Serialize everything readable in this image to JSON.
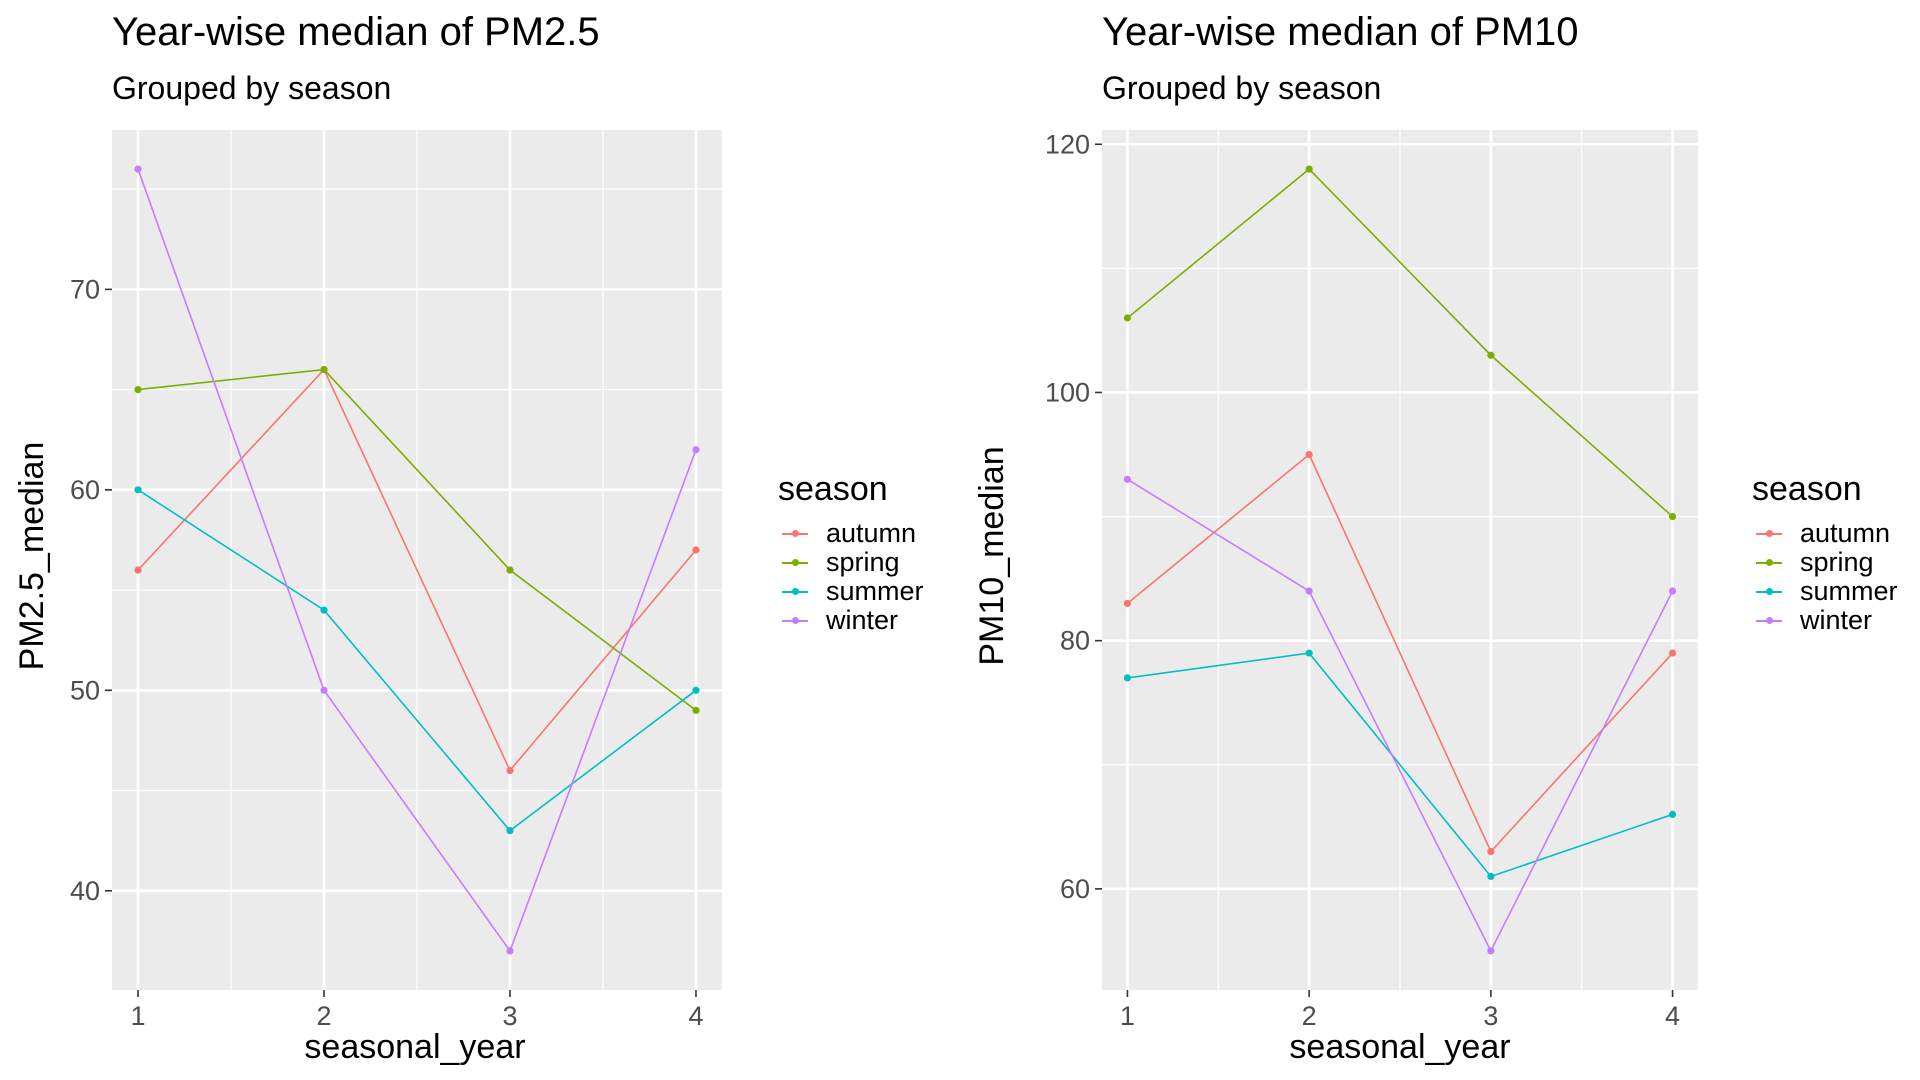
{
  "chart_data": [
    {
      "type": "line",
      "title": "Year-wise median of PM2.5",
      "subtitle": "Grouped by season",
      "xlabel": "seasonal_year",
      "ylabel": "PM2.5_median",
      "x": [
        1,
        2,
        3,
        4
      ],
      "xticks": [
        "1",
        "2",
        "3",
        "4"
      ],
      "yticks": [
        40,
        50,
        60,
        70
      ],
      "xlim": [
        0.86,
        4.14
      ],
      "ylim": [
        35.05,
        77.95
      ],
      "grid": true,
      "legend_title": "season",
      "legend_position": "right",
      "series": [
        {
          "name": "autumn",
          "color": "#F8766D",
          "values": [
            56,
            66,
            46,
            57
          ]
        },
        {
          "name": "spring",
          "color": "#7CAE00",
          "values": [
            65,
            66,
            56,
            49
          ]
        },
        {
          "name": "summer",
          "color": "#00BFC4",
          "values": [
            60,
            54,
            43,
            50
          ]
        },
        {
          "name": "winter",
          "color": "#C77CFF",
          "values": [
            76,
            50,
            37,
            62
          ]
        }
      ]
    },
    {
      "type": "line",
      "title": "Year-wise median of PM10",
      "subtitle": "Grouped by season",
      "xlabel": "seasonal_year",
      "ylabel": "PM10_median",
      "x": [
        1,
        2,
        3,
        4
      ],
      "xticks": [
        "1",
        "2",
        "3",
        "4"
      ],
      "yticks": [
        60,
        80,
        100,
        120
      ],
      "xlim": [
        0.86,
        4.14
      ],
      "ylim": [
        51.85,
        121.15
      ],
      "grid": true,
      "legend_title": "season",
      "legend_position": "right",
      "series": [
        {
          "name": "autumn",
          "color": "#F8766D",
          "values": [
            83,
            95,
            63,
            79
          ]
        },
        {
          "name": "spring",
          "color": "#7CAE00",
          "values": [
            106,
            118,
            103,
            90
          ]
        },
        {
          "name": "summer",
          "color": "#00BFC4",
          "values": [
            77,
            79,
            61,
            66
          ]
        },
        {
          "name": "winter",
          "color": "#C77CFF",
          "values": [
            93,
            84,
            55,
            84
          ]
        }
      ]
    }
  ]
}
